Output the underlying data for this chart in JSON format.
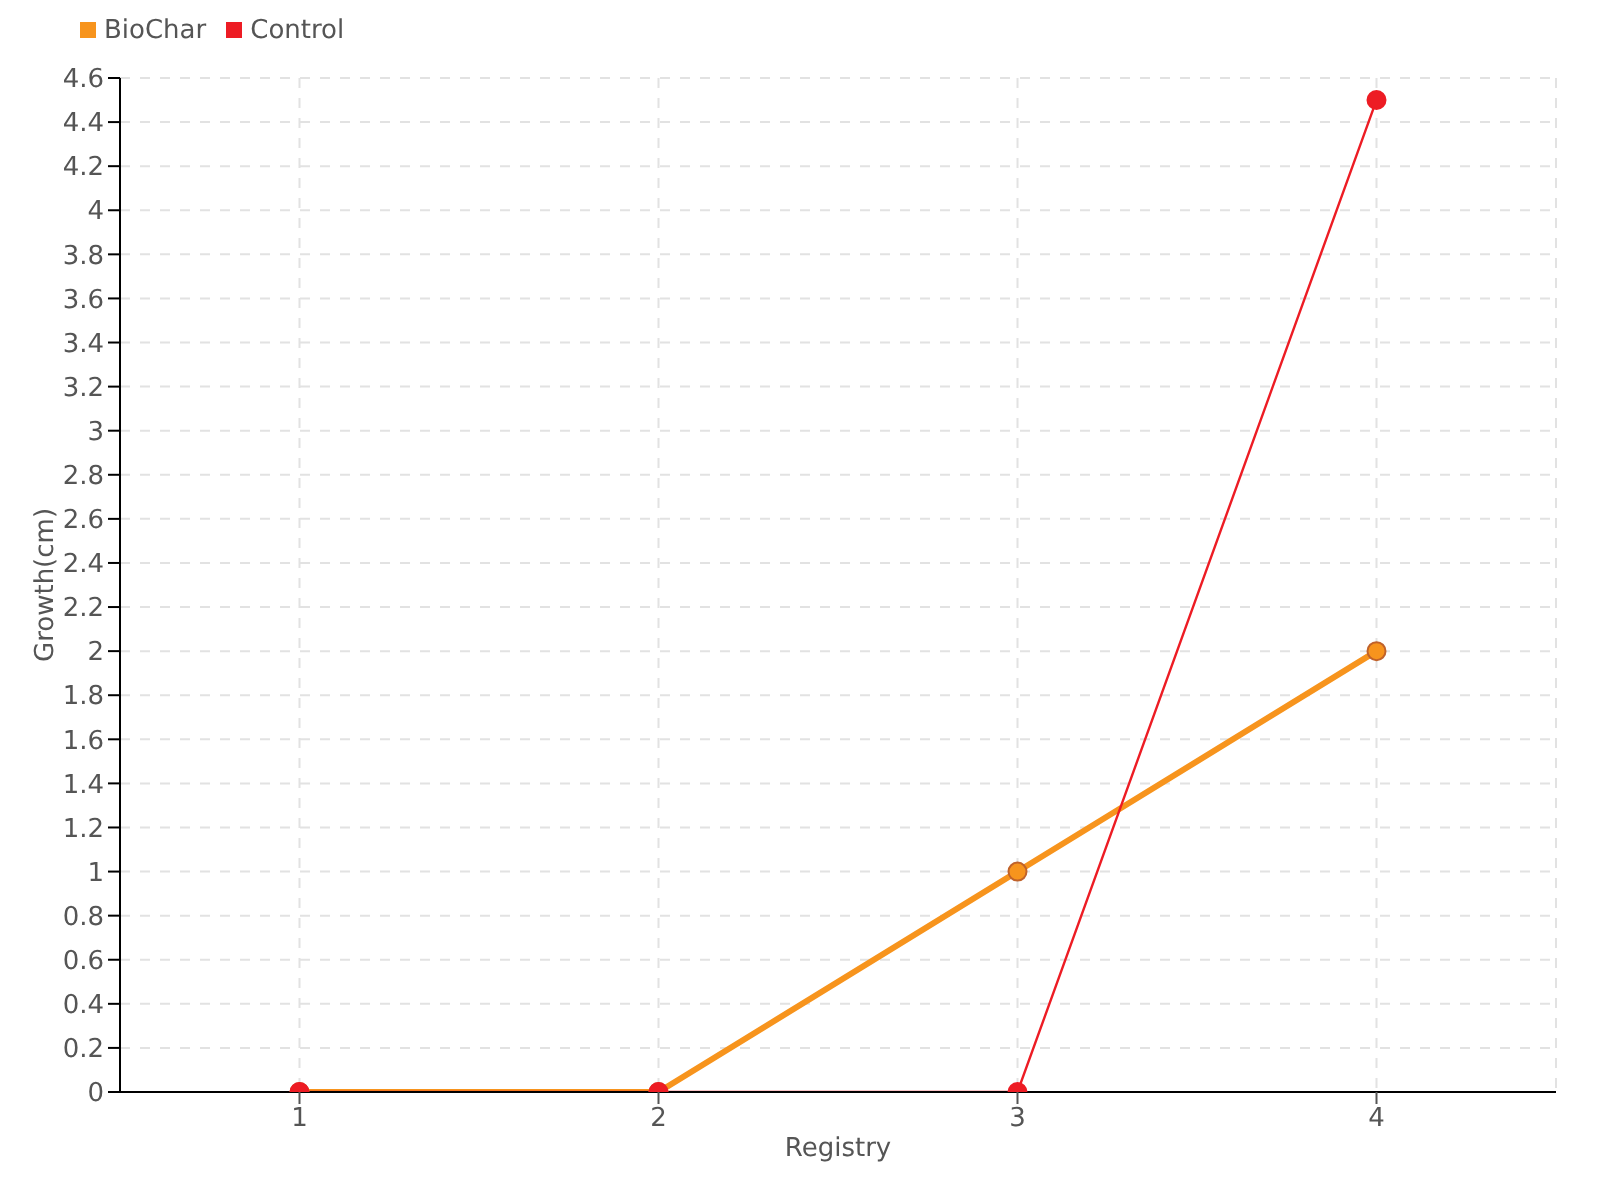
{
  "chart_data": {
    "type": "line",
    "xlabel": "Registry",
    "ylabel": "Growth(cm)",
    "x": [
      1,
      2,
      3,
      4
    ],
    "series": [
      {
        "name": "BioChar",
        "color": "#f7941d",
        "values": [
          0,
          0,
          1,
          2
        ]
      },
      {
        "name": "Control",
        "color": "#ed1c24",
        "values": [
          0,
          0,
          0,
          4.5
        ]
      }
    ],
    "xlim": [
      0.5,
      4.5
    ],
    "xticks": [
      1,
      2,
      3,
      4
    ],
    "ylim": [
      0,
      4.6
    ],
    "yticks": [
      0,
      0.2,
      0.4,
      0.6,
      0.8,
      1,
      1.2,
      1.4,
      1.6,
      1.8,
      2,
      2.2,
      2.4,
      2.6,
      2.8,
      3,
      3.2,
      3.4,
      3.6,
      3.8,
      4,
      4.2,
      4.4,
      4.6
    ],
    "grid": true,
    "legend": "top left",
    "marker": "circle",
    "line_style": "solid"
  }
}
